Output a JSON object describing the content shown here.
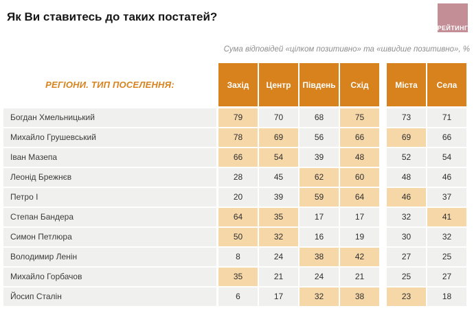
{
  "title": "Як Ви ставитесь до таких постатей?",
  "logo": {
    "text": "РЕЙТИНГ",
    "bg_color": "#C48E97"
  },
  "subtitle": "Сума відповідей «цілком позитивно» та «швидше позитивно», %",
  "table": {
    "corner_label": "РЕГІОНИ. ТИП ПОСЕЛЕННЯ:"
  },
  "colors": {
    "accent_orange": "#D8821E",
    "highlight_peach": "#F6D7A8",
    "cell_gray": "#F0F0EE"
  },
  "chart_data": {
    "type": "table",
    "title": "Як Ви ставитесь до таких постатей?",
    "subtitle": "Сума відповідей «цілком позитивно» та «швидше позитивно», %",
    "columns": [
      "Захід",
      "Центр",
      "Південь",
      "Схід",
      "Міста",
      "Села"
    ],
    "column_groups": [
      {
        "name": "регіони",
        "columns": [
          "Захід",
          "Центр",
          "Південь",
          "Схід"
        ]
      },
      {
        "name": "тип поселення",
        "columns": [
          "Міста",
          "Села"
        ]
      }
    ],
    "rows": [
      {
        "label": "Богдан Хмельницький",
        "values": [
          79,
          70,
          68,
          75,
          73,
          71
        ],
        "highlighted": [
          true,
          false,
          false,
          true,
          false,
          false
        ]
      },
      {
        "label": "Михайло Грушевський",
        "values": [
          78,
          69,
          56,
          66,
          69,
          66
        ],
        "highlighted": [
          true,
          true,
          false,
          true,
          true,
          false
        ]
      },
      {
        "label": "Іван Мазепа",
        "values": [
          66,
          54,
          39,
          48,
          52,
          54
        ],
        "highlighted": [
          true,
          true,
          false,
          true,
          false,
          false
        ]
      },
      {
        "label": "Леонід Брежнєв",
        "values": [
          28,
          45,
          62,
          60,
          48,
          46
        ],
        "highlighted": [
          false,
          false,
          true,
          true,
          false,
          false
        ]
      },
      {
        "label": "Петро І",
        "values": [
          20,
          39,
          59,
          64,
          46,
          37
        ],
        "highlighted": [
          false,
          false,
          true,
          true,
          true,
          false
        ]
      },
      {
        "label": "Степан Бандера",
        "values": [
          64,
          35,
          17,
          17,
          32,
          41
        ],
        "highlighted": [
          true,
          true,
          false,
          false,
          false,
          true
        ]
      },
      {
        "label": "Симон Петлюра",
        "values": [
          50,
          32,
          16,
          19,
          30,
          32
        ],
        "highlighted": [
          true,
          true,
          false,
          false,
          false,
          false
        ]
      },
      {
        "label": "Володимир Ленін",
        "values": [
          8,
          24,
          38,
          42,
          27,
          25
        ],
        "highlighted": [
          false,
          false,
          true,
          true,
          false,
          false
        ]
      },
      {
        "label": "Михайло Горбачов",
        "values": [
          35,
          21,
          24,
          21,
          25,
          27
        ],
        "highlighted": [
          true,
          false,
          false,
          false,
          false,
          false
        ]
      },
      {
        "label": "Йосип Сталін",
        "values": [
          6,
          17,
          32,
          38,
          23,
          18
        ],
        "highlighted": [
          false,
          false,
          true,
          true,
          true,
          false
        ]
      }
    ]
  }
}
